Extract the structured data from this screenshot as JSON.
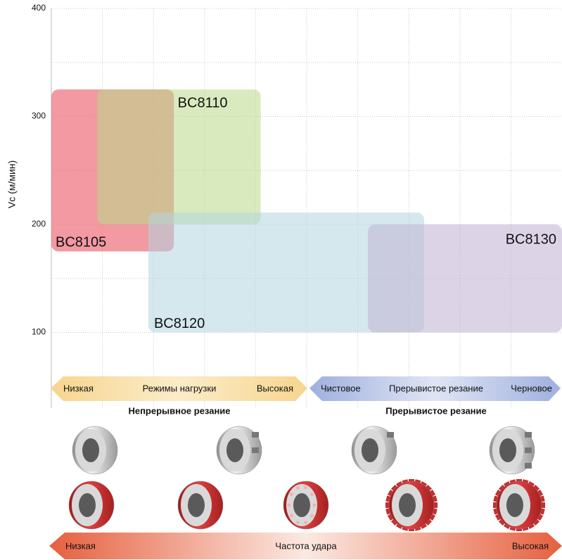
{
  "chart_data": {
    "type": "range-map",
    "y_label": "Vc (м/мин)",
    "ylim": [
      30,
      400
    ],
    "yticks": [
      100,
      200,
      300,
      400
    ],
    "minor_yticks": [
      50,
      150,
      250,
      350
    ],
    "xlim": [
      0,
      10
    ],
    "xticks": [
      1,
      2,
      3,
      4,
      5,
      6,
      7,
      8,
      9
    ],
    "grid": true,
    "series": [
      {
        "name": "BC8105",
        "color": "rgba(236,105,118,0.68)",
        "x": [
          0,
          2.4
        ],
        "values": [
          175,
          325
        ]
      },
      {
        "name": "BC8110",
        "color": "rgba(186,218,136,0.55)",
        "x": [
          0.9,
          4.1
        ],
        "values": [
          200,
          325
        ]
      },
      {
        "name": "BC8120",
        "color": "rgba(176,214,224,0.55)",
        "x": [
          1.9,
          7.3
        ],
        "values": [
          100,
          211
        ]
      },
      {
        "name": "BC8130",
        "color": "rgba(196,184,214,0.6)",
        "x": [
          6.2,
          10
        ],
        "values": [
          100,
          200
        ]
      }
    ],
    "annotations": {
      "load": {
        "low": "Низкая",
        "title": "Режимы нагрузки",
        "high": "Высокая"
      },
      "mode": {
        "low": "Чистовое",
        "title": "Прерывистое резание",
        "high": "Черновое"
      },
      "sections": [
        "Непрерывное резание",
        "Прерывистое резание"
      ],
      "impact": {
        "low": "Низкая",
        "title": "Частота удара",
        "high": "Высокая"
      }
    }
  }
}
